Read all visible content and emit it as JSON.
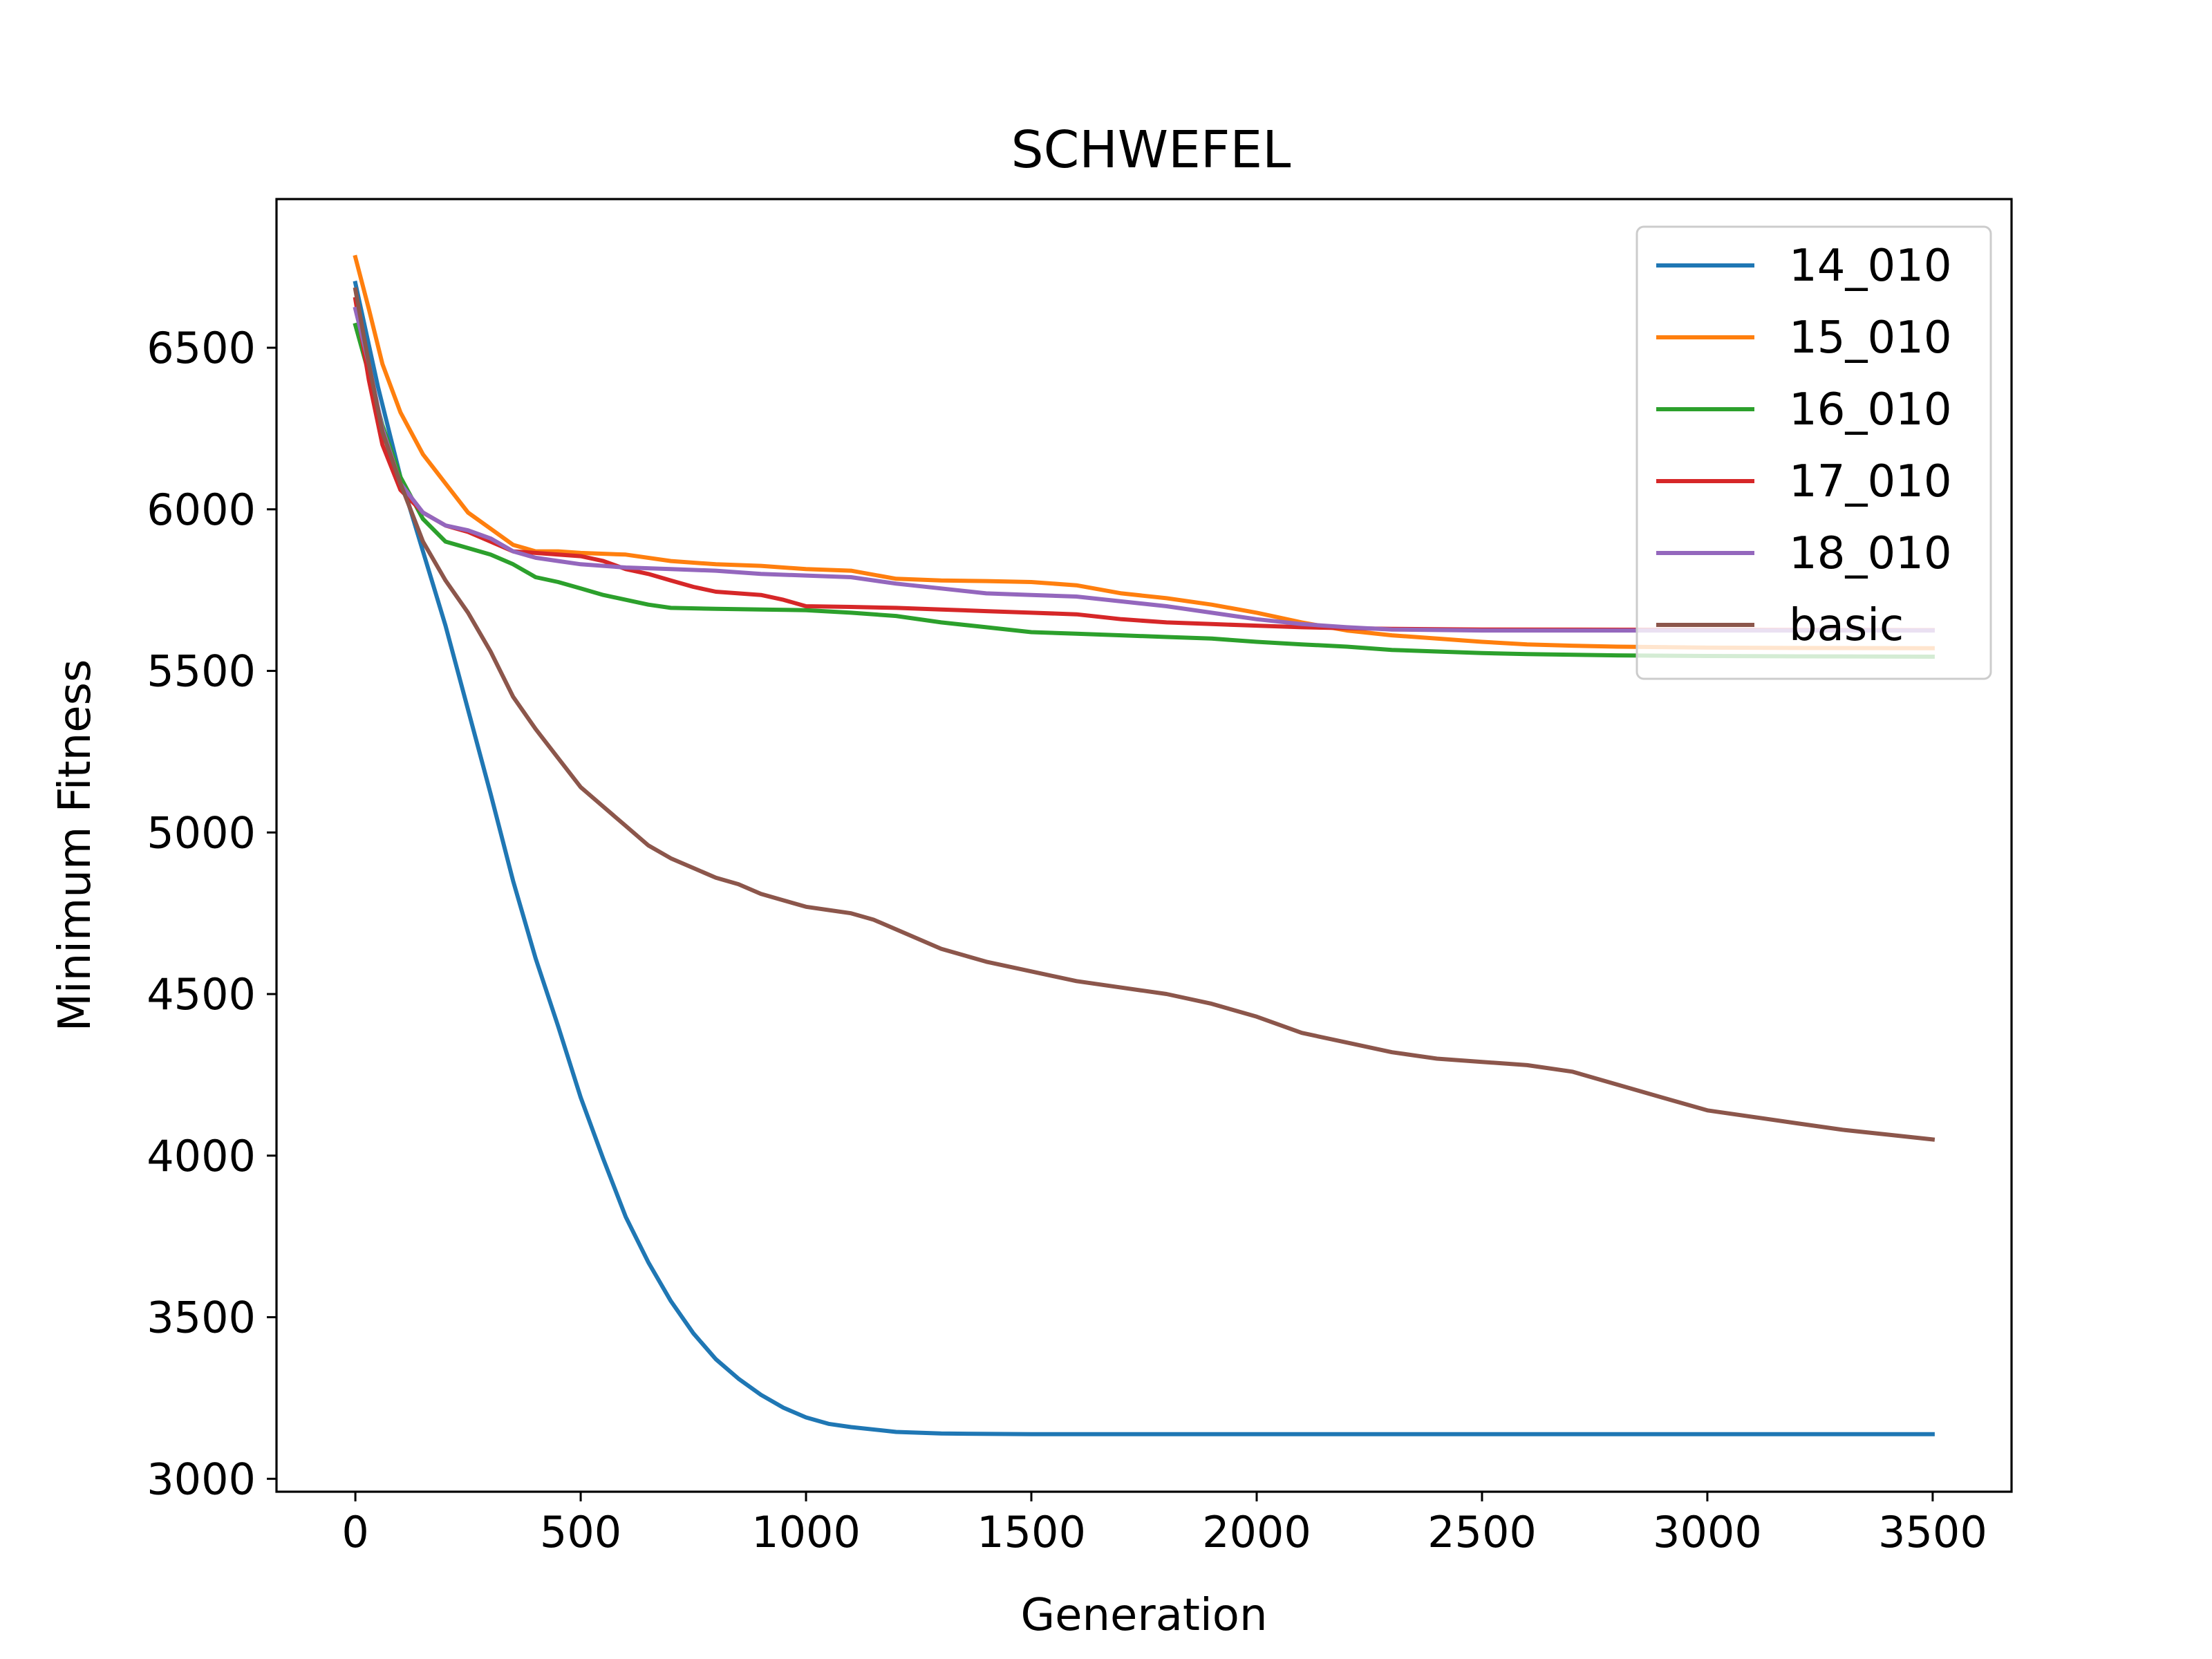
{
  "chart_data": {
    "type": "line",
    "title": "SCHWEFEL",
    "xlabel": "Generation",
    "ylabel": "Minimum Fitness",
    "xlim": [
      -175,
      3675
    ],
    "ylim": [
      2960,
      6960
    ],
    "xticks": [
      0,
      500,
      1000,
      1500,
      2000,
      2500,
      3000,
      3500
    ],
    "yticks": [
      3000,
      3500,
      4000,
      4500,
      5000,
      5500,
      6000,
      6500
    ],
    "grid": false,
    "legend_position": "top-right",
    "series": [
      {
        "name": "14_010",
        "color": "#1f77b4",
        "points": [
          [
            0,
            6700
          ],
          [
            50,
            6380
          ],
          [
            100,
            6100
          ],
          [
            150,
            5870
          ],
          [
            200,
            5640
          ],
          [
            250,
            5380
          ],
          [
            300,
            5120
          ],
          [
            350,
            4850
          ],
          [
            400,
            4610
          ],
          [
            450,
            4400
          ],
          [
            500,
            4180
          ],
          [
            550,
            3990
          ],
          [
            600,
            3810
          ],
          [
            650,
            3670
          ],
          [
            700,
            3550
          ],
          [
            750,
            3450
          ],
          [
            800,
            3370
          ],
          [
            850,
            3310
          ],
          [
            900,
            3260
          ],
          [
            950,
            3220
          ],
          [
            1000,
            3190
          ],
          [
            1050,
            3170
          ],
          [
            1100,
            3160
          ],
          [
            1200,
            3145
          ],
          [
            1300,
            3140
          ],
          [
            1500,
            3138
          ],
          [
            2000,
            3138
          ],
          [
            2500,
            3138
          ],
          [
            3000,
            3138
          ],
          [
            3500,
            3138
          ]
        ]
      },
      {
        "name": "15_010",
        "color": "#ff7f0e",
        "points": [
          [
            0,
            6780
          ],
          [
            30,
            6620
          ],
          [
            60,
            6450
          ],
          [
            100,
            6300
          ],
          [
            150,
            6170
          ],
          [
            200,
            6080
          ],
          [
            250,
            5990
          ],
          [
            300,
            5940
          ],
          [
            350,
            5890
          ],
          [
            400,
            5870
          ],
          [
            450,
            5870
          ],
          [
            500,
            5865
          ],
          [
            600,
            5860
          ],
          [
            700,
            5840
          ],
          [
            800,
            5830
          ],
          [
            900,
            5825
          ],
          [
            1000,
            5815
          ],
          [
            1100,
            5810
          ],
          [
            1200,
            5785
          ],
          [
            1300,
            5780
          ],
          [
            1400,
            5778
          ],
          [
            1500,
            5775
          ],
          [
            1600,
            5765
          ],
          [
            1700,
            5740
          ],
          [
            1800,
            5725
          ],
          [
            1900,
            5705
          ],
          [
            2000,
            5680
          ],
          [
            2100,
            5650
          ],
          [
            2200,
            5625
          ],
          [
            2300,
            5610
          ],
          [
            2400,
            5600
          ],
          [
            2500,
            5590
          ],
          [
            2600,
            5582
          ],
          [
            2700,
            5578
          ],
          [
            2800,
            5575
          ],
          [
            3000,
            5572
          ],
          [
            3200,
            5571
          ],
          [
            3500,
            5570
          ]
        ]
      },
      {
        "name": "16_010",
        "color": "#2ca02c",
        "points": [
          [
            0,
            6570
          ],
          [
            30,
            6420
          ],
          [
            60,
            6260
          ],
          [
            100,
            6100
          ],
          [
            150,
            5970
          ],
          [
            200,
            5900
          ],
          [
            250,
            5880
          ],
          [
            300,
            5860
          ],
          [
            350,
            5830
          ],
          [
            400,
            5790
          ],
          [
            450,
            5775
          ],
          [
            500,
            5755
          ],
          [
            550,
            5735
          ],
          [
            600,
            5720
          ],
          [
            650,
            5705
          ],
          [
            700,
            5695
          ],
          [
            800,
            5692
          ],
          [
            900,
            5690
          ],
          [
            1000,
            5688
          ],
          [
            1100,
            5680
          ],
          [
            1200,
            5670
          ],
          [
            1300,
            5650
          ],
          [
            1400,
            5635
          ],
          [
            1500,
            5620
          ],
          [
            1600,
            5615
          ],
          [
            1700,
            5610
          ],
          [
            1800,
            5605
          ],
          [
            1900,
            5600
          ],
          [
            2000,
            5590
          ],
          [
            2100,
            5582
          ],
          [
            2200,
            5575
          ],
          [
            2300,
            5565
          ],
          [
            2400,
            5560
          ],
          [
            2500,
            5555
          ],
          [
            2600,
            5552
          ],
          [
            2800,
            5548
          ],
          [
            3000,
            5546
          ],
          [
            3200,
            5545
          ],
          [
            3500,
            5544
          ]
        ]
      },
      {
        "name": "17_010",
        "color": "#d62728",
        "points": [
          [
            0,
            6650
          ],
          [
            30,
            6400
          ],
          [
            60,
            6200
          ],
          [
            100,
            6060
          ],
          [
            150,
            5990
          ],
          [
            200,
            5950
          ],
          [
            250,
            5930
          ],
          [
            300,
            5900
          ],
          [
            350,
            5870
          ],
          [
            400,
            5865
          ],
          [
            450,
            5860
          ],
          [
            500,
            5855
          ],
          [
            550,
            5840
          ],
          [
            600,
            5815
          ],
          [
            650,
            5800
          ],
          [
            700,
            5780
          ],
          [
            750,
            5760
          ],
          [
            800,
            5745
          ],
          [
            900,
            5735
          ],
          [
            950,
            5720
          ],
          [
            1000,
            5700
          ],
          [
            1100,
            5698
          ],
          [
            1200,
            5695
          ],
          [
            1300,
            5690
          ],
          [
            1400,
            5685
          ],
          [
            1500,
            5680
          ],
          [
            1600,
            5675
          ],
          [
            1700,
            5660
          ],
          [
            1800,
            5650
          ],
          [
            1900,
            5645
          ],
          [
            2000,
            5640
          ],
          [
            2100,
            5635
          ],
          [
            2200,
            5632
          ],
          [
            2300,
            5630
          ],
          [
            2500,
            5628
          ],
          [
            3000,
            5627
          ],
          [
            3500,
            5626
          ]
        ]
      },
      {
        "name": "18_010",
        "color": "#9467bd",
        "points": [
          [
            0,
            6620
          ],
          [
            30,
            6450
          ],
          [
            60,
            6250
          ],
          [
            100,
            6080
          ],
          [
            150,
            5990
          ],
          [
            200,
            5950
          ],
          [
            250,
            5935
          ],
          [
            300,
            5910
          ],
          [
            350,
            5870
          ],
          [
            400,
            5850
          ],
          [
            450,
            5840
          ],
          [
            500,
            5830
          ],
          [
            600,
            5820
          ],
          [
            700,
            5815
          ],
          [
            800,
            5810
          ],
          [
            900,
            5800
          ],
          [
            1000,
            5795
          ],
          [
            1100,
            5790
          ],
          [
            1200,
            5770
          ],
          [
            1300,
            5755
          ],
          [
            1400,
            5740
          ],
          [
            1500,
            5735
          ],
          [
            1600,
            5730
          ],
          [
            1700,
            5715
          ],
          [
            1800,
            5700
          ],
          [
            1900,
            5680
          ],
          [
            2000,
            5660
          ],
          [
            2100,
            5645
          ],
          [
            2200,
            5635
          ],
          [
            2300,
            5628
          ],
          [
            2500,
            5625
          ],
          [
            3000,
            5625
          ],
          [
            3500,
            5625
          ]
        ]
      },
      {
        "name": "basic",
        "color": "#8c564b",
        "points": [
          [
            0,
            6680
          ],
          [
            30,
            6450
          ],
          [
            60,
            6240
          ],
          [
            100,
            6080
          ],
          [
            150,
            5900
          ],
          [
            200,
            5780
          ],
          [
            250,
            5680
          ],
          [
            300,
            5560
          ],
          [
            350,
            5420
          ],
          [
            400,
            5320
          ],
          [
            450,
            5230
          ],
          [
            500,
            5140
          ],
          [
            550,
            5080
          ],
          [
            600,
            5020
          ],
          [
            650,
            4960
          ],
          [
            700,
            4920
          ],
          [
            750,
            4890
          ],
          [
            800,
            4860
          ],
          [
            850,
            4840
          ],
          [
            900,
            4810
          ],
          [
            950,
            4790
          ],
          [
            1000,
            4770
          ],
          [
            1050,
            4760
          ],
          [
            1100,
            4750
          ],
          [
            1150,
            4730
          ],
          [
            1200,
            4700
          ],
          [
            1300,
            4640
          ],
          [
            1400,
            4600
          ],
          [
            1500,
            4570
          ],
          [
            1600,
            4540
          ],
          [
            1700,
            4520
          ],
          [
            1800,
            4500
          ],
          [
            1900,
            4470
          ],
          [
            2000,
            4430
          ],
          [
            2100,
            4380
          ],
          [
            2200,
            4350
          ],
          [
            2300,
            4320
          ],
          [
            2400,
            4300
          ],
          [
            2500,
            4290
          ],
          [
            2600,
            4280
          ],
          [
            2700,
            4260
          ],
          [
            2800,
            4220
          ],
          [
            2900,
            4180
          ],
          [
            3000,
            4140
          ],
          [
            3100,
            4120
          ],
          [
            3200,
            4100
          ],
          [
            3300,
            4080
          ],
          [
            3400,
            4065
          ],
          [
            3500,
            4050
          ]
        ]
      }
    ]
  }
}
